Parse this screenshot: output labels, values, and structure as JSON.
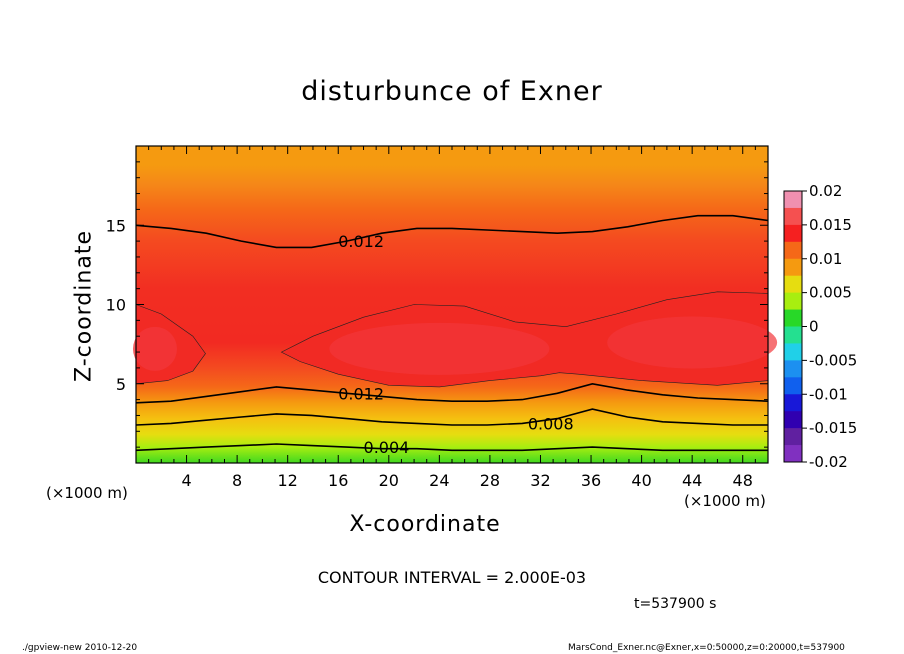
{
  "chart_data": {
    "type": "heatmap",
    "title": "disturbunce of Exner",
    "xlabel": "X-coordinate",
    "ylabel": "Z-coordinate",
    "x_unit_label": "(×1000 m)",
    "xlim": [
      0,
      50
    ],
    "ylim": [
      0,
      20
    ],
    "x_ticks": [
      4,
      8,
      12,
      16,
      20,
      24,
      28,
      32,
      36,
      40,
      44,
      48
    ],
    "y_ticks": [
      5,
      10,
      15
    ],
    "colorbar": {
      "ticks": [
        "0.02",
        "0.015",
        "0.01",
        "0.005",
        "0",
        "-0.005",
        "-0.01",
        "-0.015",
        "-0.02"
      ],
      "range": [
        -0.02,
        0.02
      ],
      "colors": [
        "#f090b0",
        "#f55050",
        "#f52020",
        "#f56818",
        "#f59a10",
        "#e6dd10",
        "#a8ee10",
        "#28d828",
        "#24e090",
        "#20d0e8",
        "#1c90f0",
        "#1060ee",
        "#1818d8",
        "#3000b0",
        "#6020a0",
        "#8030c0"
      ]
    },
    "contour_lines": [
      {
        "label": "0.012",
        "z": [
          15.0,
          14.8,
          14.5,
          14.0,
          13.6,
          13.6,
          14.0,
          14.5,
          14.8,
          14.8,
          14.7,
          14.6,
          14.5,
          14.6,
          14.9,
          15.3,
          15.6,
          15.6,
          15.3
        ]
      },
      {
        "label": "0.012",
        "z": [
          3.8,
          3.9,
          4.2,
          4.5,
          4.8,
          4.6,
          4.4,
          4.2,
          4.0,
          3.9,
          3.9,
          4.0,
          4.4,
          5.0,
          4.6,
          4.3,
          4.1,
          4.0,
          3.9
        ]
      },
      {
        "label": "0.008",
        "z": [
          2.4,
          2.5,
          2.7,
          2.9,
          3.1,
          3.0,
          2.8,
          2.6,
          2.5,
          2.4,
          2.4,
          2.5,
          2.8,
          3.4,
          2.9,
          2.6,
          2.5,
          2.4,
          2.4
        ]
      },
      {
        "label": "0.004",
        "z": [
          0.8,
          0.9,
          1.0,
          1.1,
          1.2,
          1.1,
          1.0,
          0.9,
          0.9,
          0.8,
          0.8,
          0.8,
          0.9,
          1.0,
          0.9,
          0.8,
          0.8,
          0.8,
          0.8
        ]
      }
    ],
    "contour_interval": "CONTOUR INTERVAL = 2.000E-03",
    "time": "t=537900 s"
  },
  "footer": {
    "left": "./gpview-new  2010-12-20",
    "right": "MarsCond_Exner.nc@Exner,x=0:50000,z=0:20000,t=537900"
  }
}
